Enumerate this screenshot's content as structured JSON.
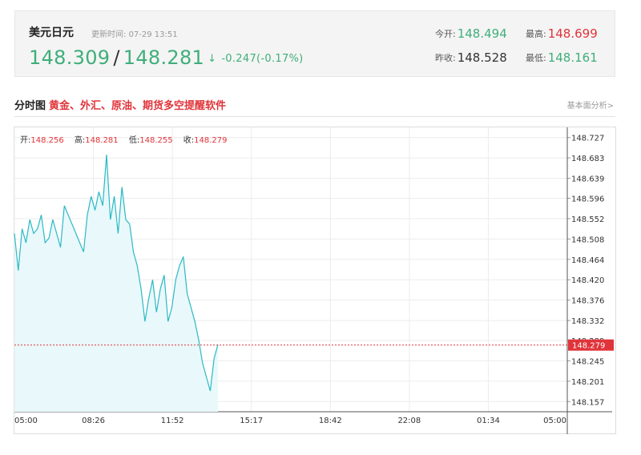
{
  "quote": {
    "name": "美元日元",
    "update_label": "更新时间:",
    "update_time": "07-29 13:51",
    "price": "148.309",
    "price2": "148.281",
    "arrow": "↓",
    "change": "-0.247(-0.17%)",
    "open_label": "今开:",
    "open_value": "148.494",
    "high_label": "最高:",
    "high_value": "148.699",
    "prev_close_label": "昨收:",
    "prev_close_value": "148.528",
    "low_label": "最低:",
    "low_value": "148.161"
  },
  "section": {
    "title": "分时图",
    "promo": "黄金、外汇、原油、期货多空提醒软件",
    "link": "基本面分析>"
  },
  "ohlc": {
    "open_label": "开:",
    "open_value": "148.256",
    "high_label": "高:",
    "high_value": "148.281",
    "low_label": "低:",
    "low_value": "148.255",
    "close_label": "收:",
    "close_value": "148.279"
  },
  "colors": {
    "up_green": "#3fae7a",
    "down_red": "#e0343a",
    "line": "#2bb9c6",
    "area": "#e9f8fa",
    "ref_line": "#e0343a"
  },
  "chart_data": {
    "type": "area",
    "title": "",
    "xlabel": "",
    "ylabel": "",
    "x_ticks": [
      "05:00",
      "08:26",
      "11:52",
      "15:17",
      "18:42",
      "22:08",
      "01:34",
      "05:00"
    ],
    "y_ticks": [
      "148.727",
      "148.683",
      "148.639",
      "148.596",
      "148.552",
      "148.508",
      "148.464",
      "148.420",
      "148.376",
      "148.332",
      "148.289",
      "148.245",
      "148.201",
      "148.157"
    ],
    "ylim": [
      148.135,
      148.749
    ],
    "current_value": "148.279",
    "reference_value": 148.279,
    "grid": true,
    "series": [
      {
        "x": [
          "05:00",
          "05:10",
          "05:20",
          "05:30",
          "05:40",
          "05:50",
          "06:00",
          "06:10",
          "06:20",
          "06:30",
          "06:40",
          "06:50",
          "07:00",
          "07:10",
          "07:20",
          "07:30",
          "07:40",
          "07:50",
          "08:00",
          "08:10",
          "08:20",
          "08:30",
          "08:40",
          "08:50",
          "09:00",
          "09:10",
          "09:20",
          "09:30",
          "09:40",
          "09:50",
          "10:00",
          "10:10",
          "10:20",
          "10:30",
          "10:40",
          "10:50",
          "11:00",
          "11:10",
          "11:20",
          "11:30",
          "11:40",
          "11:50",
          "12:00",
          "12:10",
          "12:20",
          "12:30",
          "12:40",
          "12:50",
          "13:00",
          "13:10",
          "13:20",
          "13:30",
          "13:40",
          "13:50"
        ],
        "values": [
          148.52,
          148.44,
          148.53,
          148.5,
          148.55,
          148.52,
          148.53,
          148.56,
          148.5,
          148.51,
          148.55,
          148.52,
          148.49,
          148.58,
          148.56,
          148.54,
          148.52,
          148.5,
          148.48,
          148.56,
          148.6,
          148.57,
          148.61,
          148.58,
          148.69,
          148.55,
          148.6,
          148.52,
          148.62,
          148.55,
          148.54,
          148.48,
          148.45,
          148.4,
          148.33,
          148.38,
          148.42,
          148.35,
          148.4,
          148.43,
          148.33,
          148.36,
          148.42,
          148.45,
          148.47,
          148.39,
          148.36,
          148.33,
          148.29,
          148.24,
          148.21,
          148.18,
          148.25,
          148.28
        ]
      }
    ]
  }
}
